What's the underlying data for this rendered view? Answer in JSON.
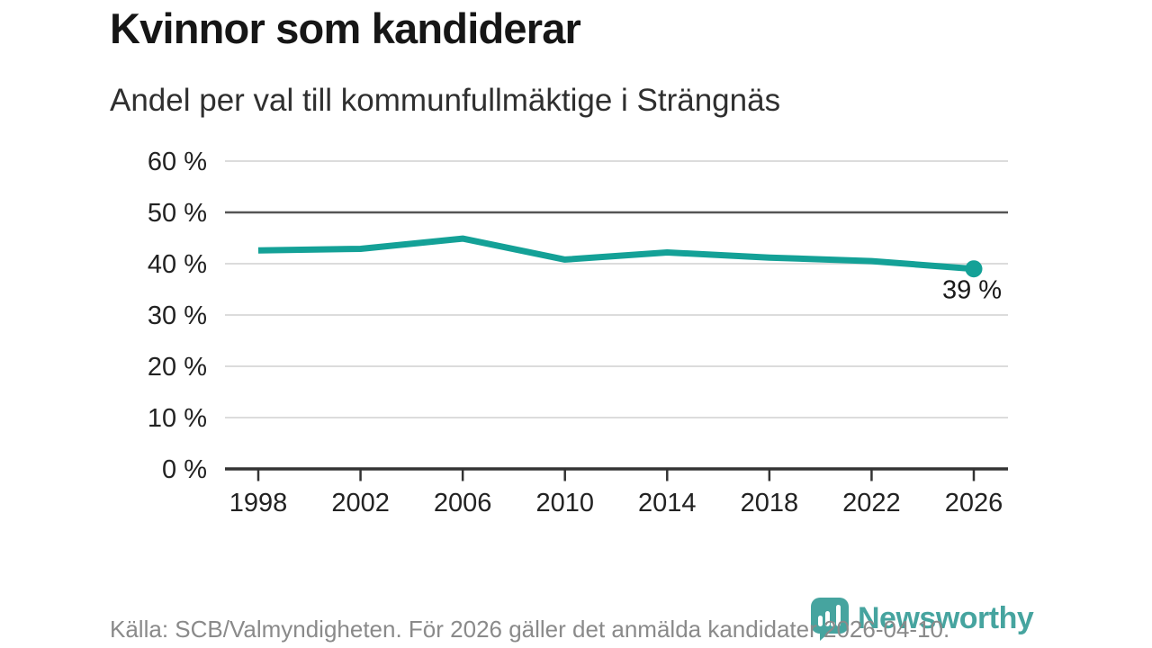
{
  "header": {
    "title": "Kvinnor som kandiderar",
    "subtitle": "Andel per val till kommunfullmäktige i Strängnäs"
  },
  "chart_data": {
    "type": "line",
    "title": "Kvinnor som kandiderar",
    "subtitle": "Andel per val till kommunfullmäktige i Strängnäs",
    "x": [
      1998,
      2002,
      2006,
      2010,
      2014,
      2018,
      2022,
      2026
    ],
    "x_tick_labels": [
      "1998",
      "2002",
      "2006",
      "2010",
      "2014",
      "2018",
      "2022",
      "2026"
    ],
    "series": [
      {
        "name": "Andel kvinnor som kandiderar",
        "values": [
          42.6,
          42.9,
          44.9,
          40.8,
          42.2,
          41.2,
          40.5,
          39
        ]
      }
    ],
    "ylim": [
      0,
      60
    ],
    "y_tick_step": 10,
    "y_tick_labels": [
      "0 %",
      "10 %",
      "20 %",
      "30 %",
      "40 %",
      "50 %",
      "60 %"
    ],
    "reference_line_y": 50,
    "grid": true,
    "legend_position": "none",
    "end_label": "39 %"
  },
  "footer": {
    "source_text": "Källa: SCB/Valmyndigheten. För 2026 gäller det anmälda kandidater 2026-04-10.",
    "brand": {
      "name": "Newsworthy"
    }
  },
  "colors": {
    "line": "#14a197",
    "grid_light": "#dcdcdc",
    "grid_dark": "#555555",
    "axis": "#333333",
    "tick_text": "#222222",
    "title_text": "#161616",
    "subtitle_text": "#2f2f2f",
    "source_text": "#8a8a8a",
    "brand": "#46a49f",
    "annotation_text": "#1a1a1a"
  }
}
